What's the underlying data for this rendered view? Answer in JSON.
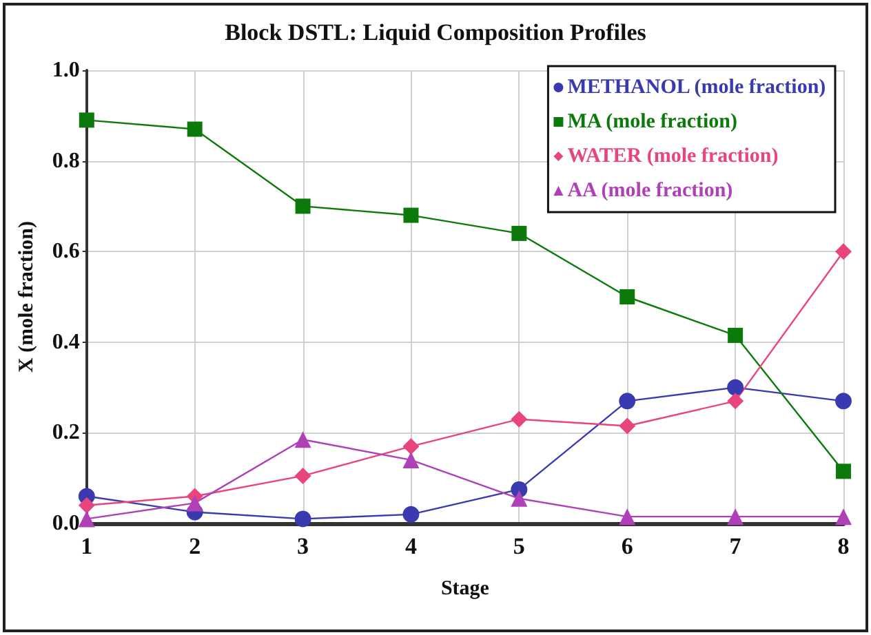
{
  "chart_data": {
    "type": "line",
    "title": "Block DSTL: Liquid Composition Profiles",
    "xlabel": "Stage",
    "ylabel": "X (mole fraction)",
    "x": [
      1,
      2,
      3,
      4,
      5,
      6,
      7,
      8
    ],
    "series": [
      {
        "name": "METHANOL (mole fraction)",
        "color": "#3a3ab0",
        "marker": "circle",
        "values": [
          0.06,
          0.025,
          0.01,
          0.02,
          0.075,
          0.27,
          0.3,
          0.27
        ]
      },
      {
        "name": "MA (mole fraction)",
        "color": "#0b7a0b",
        "marker": "square",
        "values": [
          0.89,
          0.87,
          0.7,
          0.68,
          0.64,
          0.5,
          0.415,
          0.115
        ]
      },
      {
        "name": "WATER (mole fraction)",
        "color": "#e8457e",
        "marker": "diamond",
        "values": [
          0.04,
          0.06,
          0.105,
          0.17,
          0.23,
          0.215,
          0.27,
          0.6
        ]
      },
      {
        "name": "AA (mole fraction)",
        "color": "#b040b8",
        "marker": "triangle",
        "values": [
          0.01,
          0.045,
          0.185,
          0.14,
          0.055,
          0.015,
          0.015,
          0.015
        ]
      }
    ],
    "xlim": [
      1,
      8
    ],
    "xticks": [
      1,
      2,
      3,
      4,
      5,
      6,
      7,
      8
    ],
    "ylim": [
      0,
      1
    ],
    "yticks": [
      {
        "value": 0,
        "label": "0.0"
      },
      {
        "value": 0.2,
        "label": "0.2"
      },
      {
        "value": 0.4,
        "label": "0.4"
      },
      {
        "value": 0.6,
        "label": "0.6"
      },
      {
        "value": 0.8,
        "label": "0.8"
      },
      {
        "value": 1,
        "label": "1.0"
      }
    ],
    "grid": true,
    "legend": "top right",
    "line_style": "solid"
  }
}
